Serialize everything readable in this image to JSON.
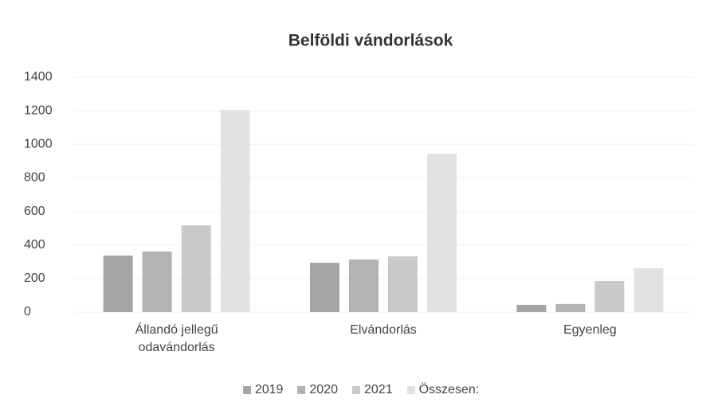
{
  "chart_data": {
    "type": "bar",
    "title": "Belföldi vándorlások",
    "categories": [
      "Állandó jellegű odavándorlás",
      "Elvándorlás",
      "Egyenleg"
    ],
    "series": [
      {
        "name": "2019",
        "color": "#a5a5a5",
        "values": [
          337,
          294,
          43
        ]
      },
      {
        "name": "2020",
        "color": "#b3b3b3",
        "values": [
          361,
          313,
          48
        ]
      },
      {
        "name": "2021",
        "color": "#c9c9c9",
        "values": [
          517,
          332,
          185
        ]
      },
      {
        "name": "Összesen:",
        "color": "#e2e2e2",
        "values": [
          1205,
          944,
          261
        ]
      }
    ],
    "ylim": [
      0,
      1400
    ],
    "yticks": [
      0,
      200,
      400,
      600,
      800,
      1000,
      1200,
      1400
    ],
    "grid": true
  }
}
